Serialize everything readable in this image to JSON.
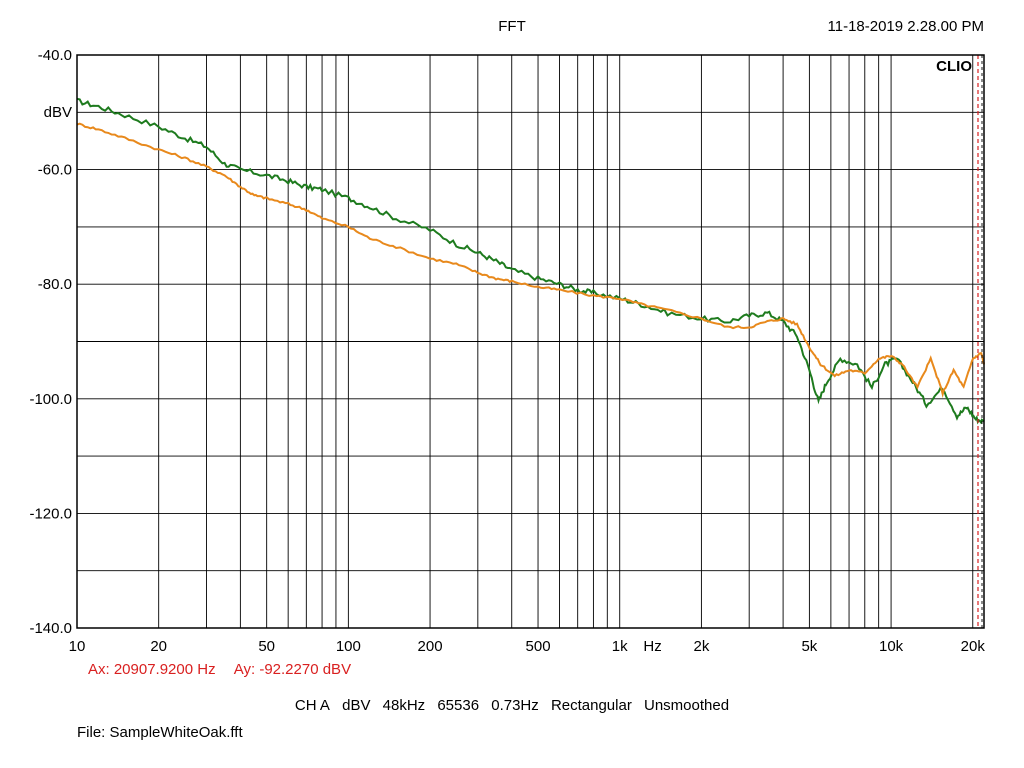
{
  "header": {
    "title": "FFT",
    "timestamp": "11-18-2019 2.28.00 PM",
    "brand": "CLIO"
  },
  "cursor": {
    "ax_label": "Ax: 20907.9200 Hz",
    "ay_label": "Ay: -92.2270 dBV",
    "ax_value": 20907.92,
    "ay_value": -92.227,
    "color": "#d92020"
  },
  "settings": {
    "items": [
      "CH A",
      "dBV",
      "48kHz",
      "65536",
      "0.73Hz",
      "Rectangular",
      "Unsmoothed"
    ]
  },
  "file": {
    "label": "File: SampleWhiteOak.fft"
  },
  "chart_data": {
    "type": "line",
    "xscale": "log",
    "xlim": [
      10,
      22000
    ],
    "ylim": [
      -140,
      -40
    ],
    "ylabel": "dBV",
    "xlabel": "Hz",
    "grid": true,
    "y_ticks": [
      {
        "value": -40,
        "label": "-40.0"
      },
      {
        "value": -60,
        "label": "-60.0"
      },
      {
        "value": -80,
        "label": "-80.0"
      },
      {
        "value": -100,
        "label": "-100.0"
      },
      {
        "value": -120,
        "label": "-120.0"
      },
      {
        "value": -140,
        "label": "-140.0"
      }
    ],
    "x_ticks": [
      {
        "value": 10,
        "label": "10"
      },
      {
        "value": 20,
        "label": "20"
      },
      {
        "value": 50,
        "label": "50"
      },
      {
        "value": 100,
        "label": "100"
      },
      {
        "value": 200,
        "label": "200"
      },
      {
        "value": 500,
        "label": "500"
      },
      {
        "value": 1000,
        "label": "1k"
      },
      {
        "value": 2000,
        "label": "2k"
      },
      {
        "value": 5000,
        "label": "5k"
      },
      {
        "value": 10000,
        "label": "10k"
      },
      {
        "value": 20000,
        "label": "20k"
      }
    ],
    "series": [
      {
        "color": "#1e7b1e",
        "points": [
          [
            10,
            -48
          ],
          [
            12,
            -49
          ],
          [
            15,
            -50.5
          ],
          [
            20,
            -52.5
          ],
          [
            25,
            -54.5
          ],
          [
            30,
            -56
          ],
          [
            35,
            -59
          ],
          [
            40,
            -60
          ],
          [
            50,
            -61
          ],
          [
            60,
            -62
          ],
          [
            70,
            -63
          ],
          [
            80,
            -63.5
          ],
          [
            100,
            -65
          ],
          [
            120,
            -66.5
          ],
          [
            150,
            -68.5
          ],
          [
            200,
            -70.5
          ],
          [
            250,
            -73
          ],
          [
            300,
            -74.5
          ],
          [
            350,
            -76
          ],
          [
            400,
            -77.5
          ],
          [
            500,
            -79
          ],
          [
            600,
            -80
          ],
          [
            700,
            -81
          ],
          [
            800,
            -81.5
          ],
          [
            1000,
            -82.5
          ],
          [
            1200,
            -83.5
          ],
          [
            1500,
            -85
          ],
          [
            2000,
            -86
          ],
          [
            2500,
            -86.5
          ],
          [
            3000,
            -85.5
          ],
          [
            3500,
            -85
          ],
          [
            4000,
            -86.5
          ],
          [
            4500,
            -89
          ],
          [
            5000,
            -95
          ],
          [
            5400,
            -100.5
          ],
          [
            5800,
            -97
          ],
          [
            6500,
            -93
          ],
          [
            7500,
            -94
          ],
          [
            8500,
            -98
          ],
          [
            9500,
            -94
          ],
          [
            10500,
            -93
          ],
          [
            12000,
            -97
          ],
          [
            13500,
            -101
          ],
          [
            15500,
            -98
          ],
          [
            17500,
            -103
          ],
          [
            19000,
            -101.5
          ],
          [
            20500,
            -103.5
          ],
          [
            22000,
            -104
          ]
        ]
      },
      {
        "color": "#e8891c",
        "points": [
          [
            10,
            -52
          ],
          [
            12,
            -53
          ],
          [
            15,
            -54.5
          ],
          [
            20,
            -56.5
          ],
          [
            25,
            -58
          ],
          [
            30,
            -59.5
          ],
          [
            35,
            -61
          ],
          [
            40,
            -63
          ],
          [
            45,
            -64.5
          ],
          [
            50,
            -65
          ],
          [
            60,
            -66
          ],
          [
            70,
            -67
          ],
          [
            80,
            -68.5
          ],
          [
            100,
            -70
          ],
          [
            120,
            -72
          ],
          [
            150,
            -73.5
          ],
          [
            200,
            -75.5
          ],
          [
            250,
            -76.5
          ],
          [
            300,
            -78
          ],
          [
            350,
            -79
          ],
          [
            400,
            -79.5
          ],
          [
            500,
            -80.5
          ],
          [
            600,
            -81
          ],
          [
            800,
            -82
          ],
          [
            1000,
            -82.5
          ],
          [
            1200,
            -83.5
          ],
          [
            1500,
            -84.5
          ],
          [
            2000,
            -86
          ],
          [
            2500,
            -87.5
          ],
          [
            3000,
            -87.5
          ],
          [
            3500,
            -86.5
          ],
          [
            4000,
            -86
          ],
          [
            4500,
            -87
          ],
          [
            5000,
            -91
          ],
          [
            5500,
            -94
          ],
          [
            6200,
            -96
          ],
          [
            7000,
            -95
          ],
          [
            8000,
            -95.5
          ],
          [
            9000,
            -93
          ],
          [
            10000,
            -92.5
          ],
          [
            11000,
            -94
          ],
          [
            12500,
            -98
          ],
          [
            14000,
            -93
          ],
          [
            15500,
            -99
          ],
          [
            17000,
            -95
          ],
          [
            18500,
            -98
          ],
          [
            20000,
            -93
          ],
          [
            21500,
            -92
          ],
          [
            22000,
            -94
          ]
        ]
      }
    ]
  }
}
